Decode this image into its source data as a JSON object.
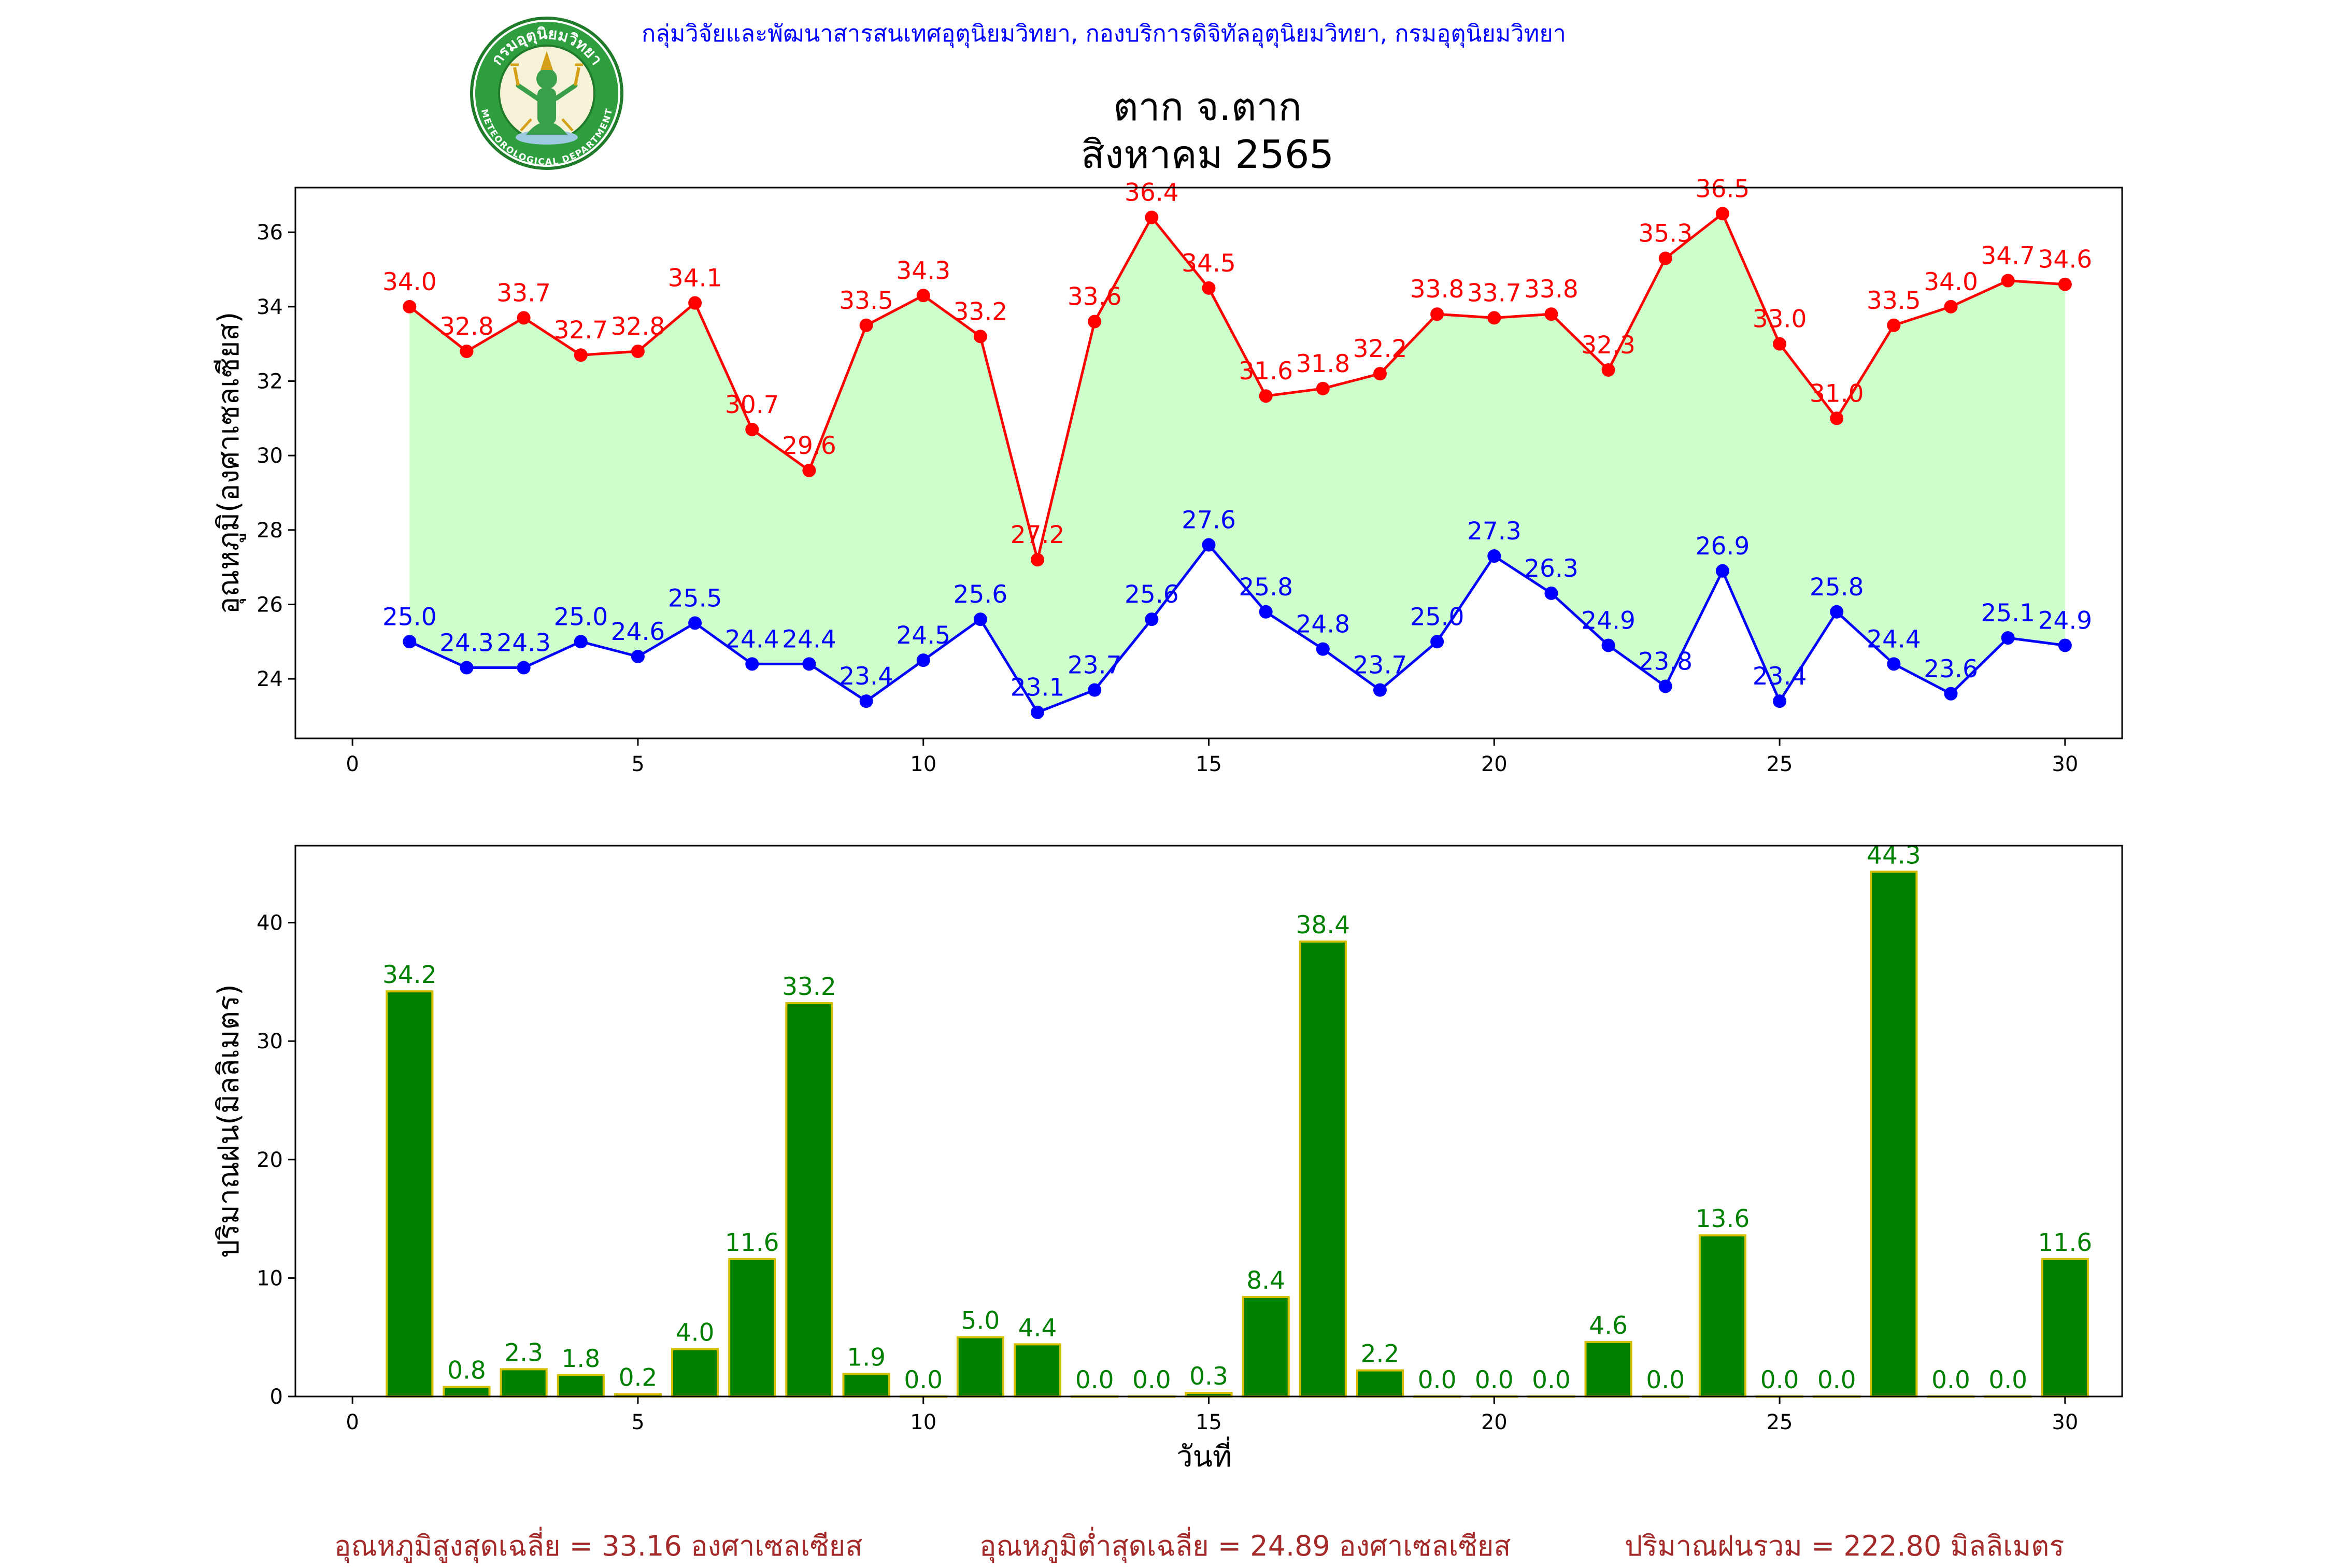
{
  "header": {
    "organization": "กลุ่มวิจัยและพัฒนาสารสนเทศอุตุนิยมวิทยา, กองบริการดิจิทัลอุตุนิยมวิทยา, กรมอุตุนิยมวิทยา",
    "station": "ตาก จ.ตาก",
    "period": "สิงหาคม 2565",
    "logo_text_top": "กรมอุตุนิยมวิทยา",
    "logo_text_bottom": "METEOROLOGICAL DEPARTMENT"
  },
  "chart_data": [
    {
      "type": "line",
      "title": "ตาก จ.ตาก สิงหาคม 2565",
      "xlabel": "",
      "ylabel": "อุณหภูมิ(องศาเซลเซียส)",
      "xlim": [
        -1,
        31
      ],
      "ylim": [
        22.4,
        37.2
      ],
      "xticks": [
        0,
        5,
        10,
        15,
        20,
        25,
        30
      ],
      "yticks": [
        24,
        26,
        28,
        30,
        32,
        34,
        36
      ],
      "x": [
        1,
        2,
        3,
        4,
        5,
        6,
        7,
        8,
        9,
        10,
        11,
        12,
        13,
        14,
        15,
        16,
        17,
        18,
        19,
        20,
        21,
        22,
        23,
        24,
        25,
        26,
        27,
        28,
        29,
        30
      ],
      "series": [
        {
          "name": "max",
          "color": "#ff0000",
          "values": [
            34.0,
            32.8,
            33.7,
            32.7,
            32.8,
            34.1,
            30.7,
            29.6,
            33.5,
            34.3,
            33.2,
            27.2,
            33.6,
            36.4,
            34.5,
            31.6,
            31.8,
            32.2,
            33.8,
            33.7,
            33.8,
            32.3,
            35.3,
            36.5,
            33.0,
            31.0,
            33.5,
            34.0,
            34.7,
            34.6
          ]
        },
        {
          "name": "min",
          "color": "#0000ff",
          "values": [
            25.0,
            24.3,
            24.3,
            25.0,
            24.6,
            25.5,
            24.4,
            24.4,
            23.4,
            24.5,
            25.6,
            23.1,
            23.7,
            25.6,
            27.6,
            25.8,
            24.8,
            23.7,
            25.0,
            27.3,
            26.3,
            24.9,
            23.8,
            26.9,
            23.4,
            25.8,
            24.4,
            23.6,
            25.1,
            24.9
          ]
        }
      ],
      "fill_color": "#ccffcc",
      "grid": false
    },
    {
      "type": "bar",
      "xlabel": "วันที่",
      "ylabel": "ปริมาณฝน(มิลลิเมตร)",
      "xlim": [
        -1,
        31
      ],
      "ylim": [
        0,
        46.5
      ],
      "xticks": [
        0,
        5,
        10,
        15,
        20,
        25,
        30
      ],
      "yticks": [
        0,
        10,
        20,
        30,
        40
      ],
      "x": [
        1,
        2,
        3,
        4,
        5,
        6,
        7,
        8,
        9,
        10,
        11,
        12,
        13,
        14,
        15,
        16,
        17,
        18,
        19,
        20,
        21,
        22,
        23,
        24,
        25,
        26,
        27,
        28,
        29,
        30
      ],
      "values": [
        34.2,
        0.8,
        2.3,
        1.8,
        0.2,
        4.0,
        11.6,
        33.2,
        1.9,
        0.0,
        5.0,
        4.4,
        0.0,
        0.0,
        0.3,
        8.4,
        38.4,
        2.2,
        0.0,
        0.0,
        0.0,
        4.6,
        0.0,
        13.6,
        0.0,
        0.0,
        44.3,
        0.0,
        0.0,
        11.6
      ],
      "bar_color": "#008000",
      "edge_color": "#d4c000",
      "label_color": "#008000",
      "grid": false
    }
  ],
  "summary": {
    "avg_max": "อุณหภูมิสูงสุดเฉลี่ย = 33.16 องศาเซลเซียส",
    "avg_min": "อุณหภูมิต่ำสุดเฉลี่ย = 24.89 องศาเซลเซียส",
    "total_rain": "ปริมาณฝนรวม = 222.80 มิลลิเมตร"
  }
}
